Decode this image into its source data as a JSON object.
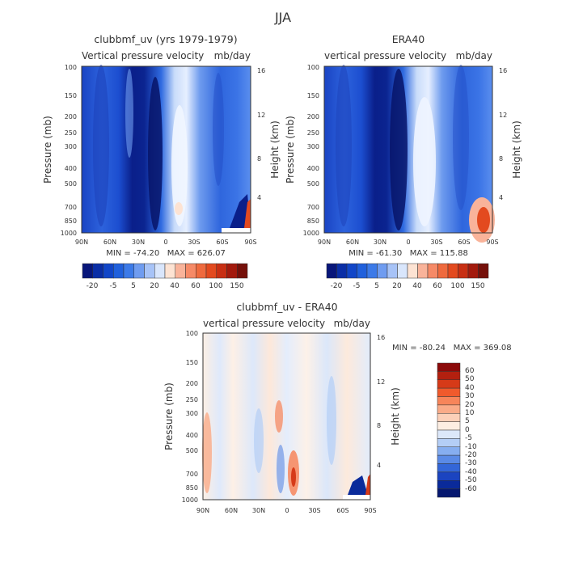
{
  "figure": {
    "title": "JJA"
  },
  "chart_data": [
    {
      "type": "heatmap",
      "panel": "top-left",
      "title": "clubbmf_uv (yrs 1979-1979)",
      "subtitle_left": "Vertical pressure velocity",
      "subtitle_right": "mb/day",
      "ylabel": "Pressure (mb)",
      "ylabel_right": "Height (km)",
      "x_ticks": [
        "90N",
        "60N",
        "30N",
        "0",
        "30S",
        "60S",
        "90S"
      ],
      "y_ticks": [
        "100",
        "150",
        "200",
        "250",
        "300",
        "400",
        "500",
        "700",
        "850",
        "1000"
      ],
      "y_ticks_right": [
        "16",
        "12",
        "8",
        "4"
      ],
      "stats": "MIN = -74.20   MAX = 626.07",
      "colorbar_labels": [
        "-20",
        "-5",
        "5",
        "20",
        "40",
        "60",
        "100",
        "150"
      ],
      "colorbar_colors": [
        "#08167a",
        "#0a2ea6",
        "#1146c8",
        "#2060dc",
        "#3c7ae8",
        "#6f9cf0",
        "#a7c3f7",
        "#d9e6fc",
        "#fde3d3",
        "#f9b39a",
        "#f68a67",
        "#ef6a3e",
        "#e34a1f",
        "#c82f13",
        "#a31a0d",
        "#75100a"
      ]
    },
    {
      "type": "heatmap",
      "panel": "top-right",
      "title": "ERA40",
      "subtitle_left": "vertical pressure velocity",
      "subtitle_right": "mb/day",
      "ylabel": "Pressure (mb)",
      "ylabel_right": "Height (km)",
      "x_ticks": [
        "90N",
        "60N",
        "30N",
        "0",
        "30S",
        "60S",
        "90S"
      ],
      "y_ticks": [
        "100",
        "150",
        "200",
        "250",
        "300",
        "400",
        "500",
        "700",
        "850",
        "1000"
      ],
      "y_ticks_right": [
        "16",
        "12",
        "8",
        "4"
      ],
      "stats": "MIN = -61.30   MAX = 115.88",
      "colorbar_labels": [
        "-20",
        "-5",
        "5",
        "20",
        "40",
        "60",
        "100",
        "150"
      ],
      "colorbar_colors": [
        "#08167a",
        "#0a2ea6",
        "#1146c8",
        "#2060dc",
        "#3c7ae8",
        "#6f9cf0",
        "#a7c3f7",
        "#d9e6fc",
        "#fde3d3",
        "#f9b39a",
        "#f68a67",
        "#ef6a3e",
        "#e34a1f",
        "#c82f13",
        "#a31a0d",
        "#75100a"
      ]
    },
    {
      "type": "heatmap",
      "panel": "bottom",
      "title": "clubbmf_uv - ERA40",
      "subtitle_left": "vertical pressure velocity",
      "subtitle_right": "mb/day",
      "ylabel": "Pressure (mb)",
      "ylabel_right": "Height (km)",
      "x_ticks": [
        "90N",
        "60N",
        "30N",
        "0",
        "30S",
        "60S",
        "90S"
      ],
      "y_ticks": [
        "100",
        "150",
        "200",
        "250",
        "300",
        "400",
        "500",
        "700",
        "850",
        "1000"
      ],
      "y_ticks_right": [
        "16",
        "12",
        "8",
        "4"
      ],
      "stats": "MIN = -80.24   MAX = 369.08",
      "colorbar_labels": [
        "60",
        "50",
        "40",
        "30",
        "20",
        "10",
        "5",
        "0",
        "-5",
        "-10",
        "-20",
        "-30",
        "-40",
        "-50",
        "-60"
      ],
      "colorbar_colors": [
        "#8b0a0a",
        "#b3200f",
        "#d63a18",
        "#f05a2c",
        "#f7855a",
        "#faab88",
        "#fcd0b8",
        "#fdeee2",
        "#dce8fa",
        "#b4cef6",
        "#86aef0",
        "#5a8ae6",
        "#3366d8",
        "#1b44c0",
        "#0a2a9a",
        "#061870"
      ]
    }
  ]
}
